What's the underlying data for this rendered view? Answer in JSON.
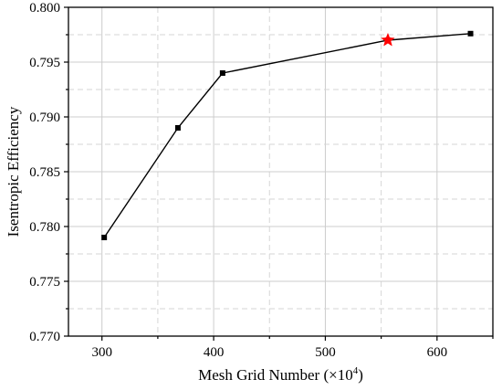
{
  "chart_data": {
    "type": "line",
    "title": "",
    "xlabel": "Mesh Grid Number (×10",
    "xlabel_superscript": "4",
    "xlabel_suffix": ")",
    "ylabel": "Isentropic Efficiency",
    "xlim": [
      270,
      650
    ],
    "ylim": [
      0.77,
      0.8
    ],
    "x_ticks": [
      "300",
      "400",
      "500",
      "600"
    ],
    "x_tick_values": [
      300,
      400,
      500,
      600
    ],
    "y_ticks": [
      "0.770",
      "0.775",
      "0.780",
      "0.785",
      "0.790",
      "0.795",
      "0.800"
    ],
    "y_tick_values": [
      0.77,
      0.775,
      0.78,
      0.785,
      0.79,
      0.795,
      0.8
    ],
    "grid": true,
    "series": [
      {
        "x": [
          302,
          368,
          408,
          556,
          630
        ],
        "y": [
          0.779,
          0.789,
          0.794,
          0.797,
          0.7976
        ],
        "color": "#000000",
        "marker": "square"
      }
    ],
    "highlight": {
      "x": 556,
      "y": 0.797,
      "marker": "star",
      "color": "#ff0000"
    }
  }
}
